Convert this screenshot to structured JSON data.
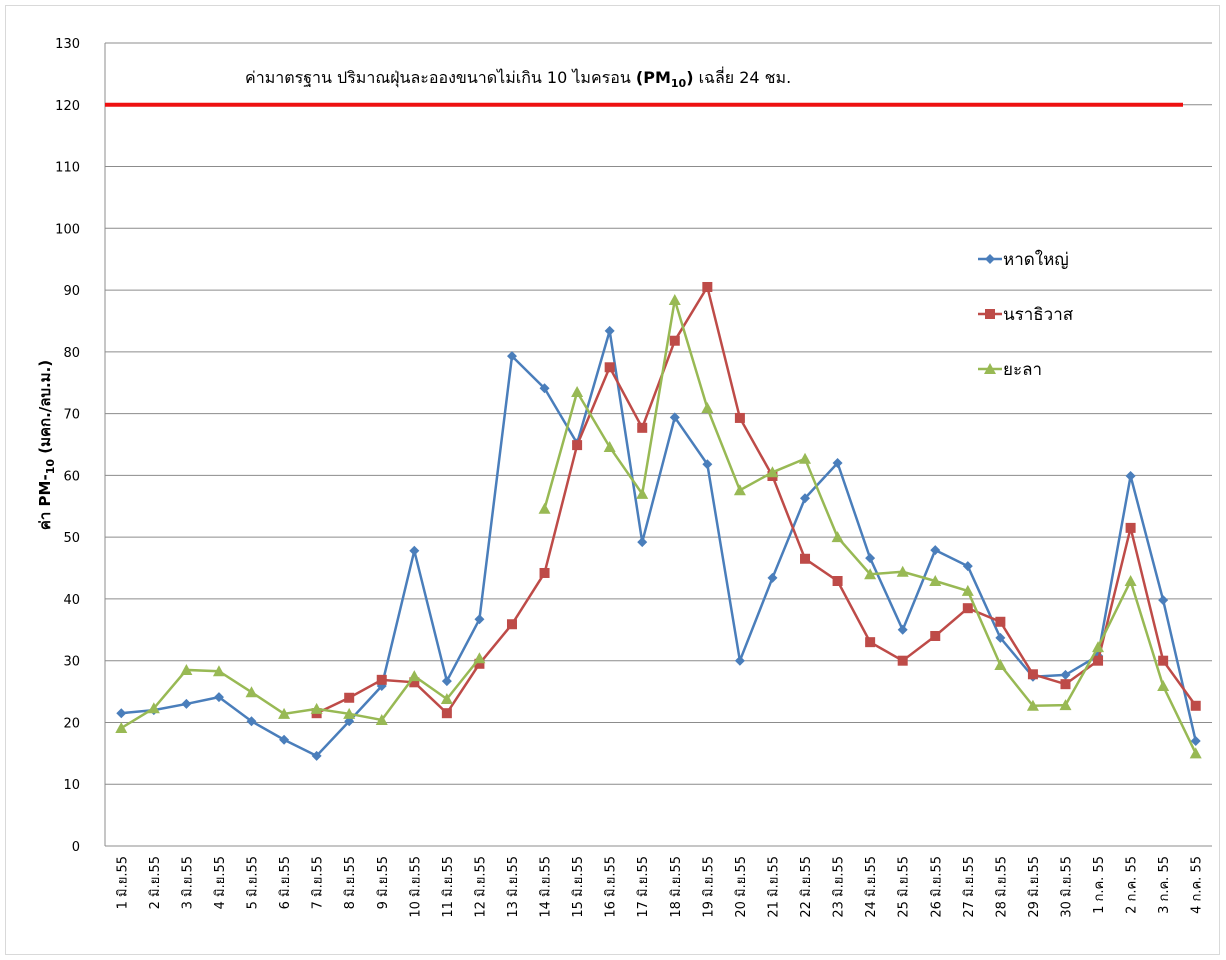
{
  "chart_data": {
    "type": "line",
    "annotation": [
      "ค่ามาตรฐาน ปริมาณฝุ่นละอองขนาดไม่เกิน 10 ไมครอน ",
      "(PM",
      "10",
      ")",
      " เฉลี่ย 24 ชม."
    ],
    "y_label": [
      "ค่า PM-",
      "10",
      " (มคก./ลบ.ม.)"
    ],
    "reference_line": {
      "value": 120,
      "color": "#ee1111"
    },
    "categories": [
      "1 มิ.ย.55",
      "2 มิ.ย.55",
      "3 มิ.ย.55",
      "4 มิ.ย.55",
      "5 มิ.ย.55",
      "6 มิ.ย.55",
      "7 มิ.ย.55",
      "8 มิ.ย.55",
      "9 มิ.ย.55",
      "10 มิ.ย.55",
      "11 มิ.ย.55",
      "12 มิ.ย.55",
      "13 มิ.ย.55",
      "14 มิ.ย.55",
      "15 มิ.ย.55",
      "16 มิ.ย.55",
      "17 มิ.ย.55",
      "18 มิ.ย.55",
      "19 มิ.ย.55",
      "20 มิ.ย.55",
      "21 มิ.ย.55",
      "22 มิ.ย.55",
      "23 มิ.ย.55",
      "24 มิ.ย.55",
      "25 มิ.ย.55",
      "26 มิ.ย.55",
      "27 มิ.ย.55",
      "28 มิ.ย.55",
      "29 มิ.ย.55",
      "30 มิ.ย.55",
      "1 ก.ค. 55",
      "2 ก.ค. 55",
      "3 ก.ค. 55",
      "4 ก.ค. 55"
    ],
    "series": [
      {
        "name": "หาดใหญ่",
        "color": "#4a7ebb",
        "marker": "diamond",
        "values": [
          21.5,
          22,
          23,
          24.1,
          20.2,
          17.2,
          14.6,
          20.2,
          25.9,
          47.8,
          26.7,
          36.7,
          79.3,
          74.1,
          65.2,
          83.4,
          49.2,
          69.4,
          61.8,
          30,
          43.4,
          56.3,
          62,
          46.6,
          35,
          47.9,
          45.3,
          33.7,
          27.4,
          27.7,
          30.8,
          59.9,
          39.8,
          17
        ]
      },
      {
        "name": "นราธิวาส",
        "color": "#be4b48",
        "marker": "square",
        "values": [
          null,
          null,
          null,
          null,
          null,
          null,
          21.5,
          24,
          26.9,
          26.5,
          21.5,
          29.5,
          35.9,
          44.2,
          64.9,
          77.5,
          67.7,
          81.8,
          90.5,
          69.3,
          59.9,
          46.5,
          42.9,
          33,
          30,
          34,
          38.5,
          36.3,
          27.8,
          26.2,
          30,
          51.5,
          30,
          22.7
        ]
      },
      {
        "name": "ยะลา",
        "color": "#98b954",
        "marker": "triangle",
        "values": [
          19.1,
          22.3,
          28.5,
          28.3,
          24.9,
          21.4,
          22.2,
          21.4,
          20.4,
          27.5,
          23.8,
          30.4,
          null,
          54.6,
          73.5,
          64.6,
          57,
          88.4,
          70.9,
          57.6,
          60.5,
          62.7,
          50,
          44,
          44.4,
          42.9,
          41.3,
          29.3,
          22.7,
          22.8,
          32.2,
          42.9,
          25.9,
          15
        ]
      }
    ],
    "ylim": [
      0,
      130
    ],
    "yticks": [
      0,
      10,
      20,
      30,
      40,
      50,
      60,
      70,
      80,
      90,
      100,
      110,
      120,
      130
    ],
    "grid": true
  }
}
